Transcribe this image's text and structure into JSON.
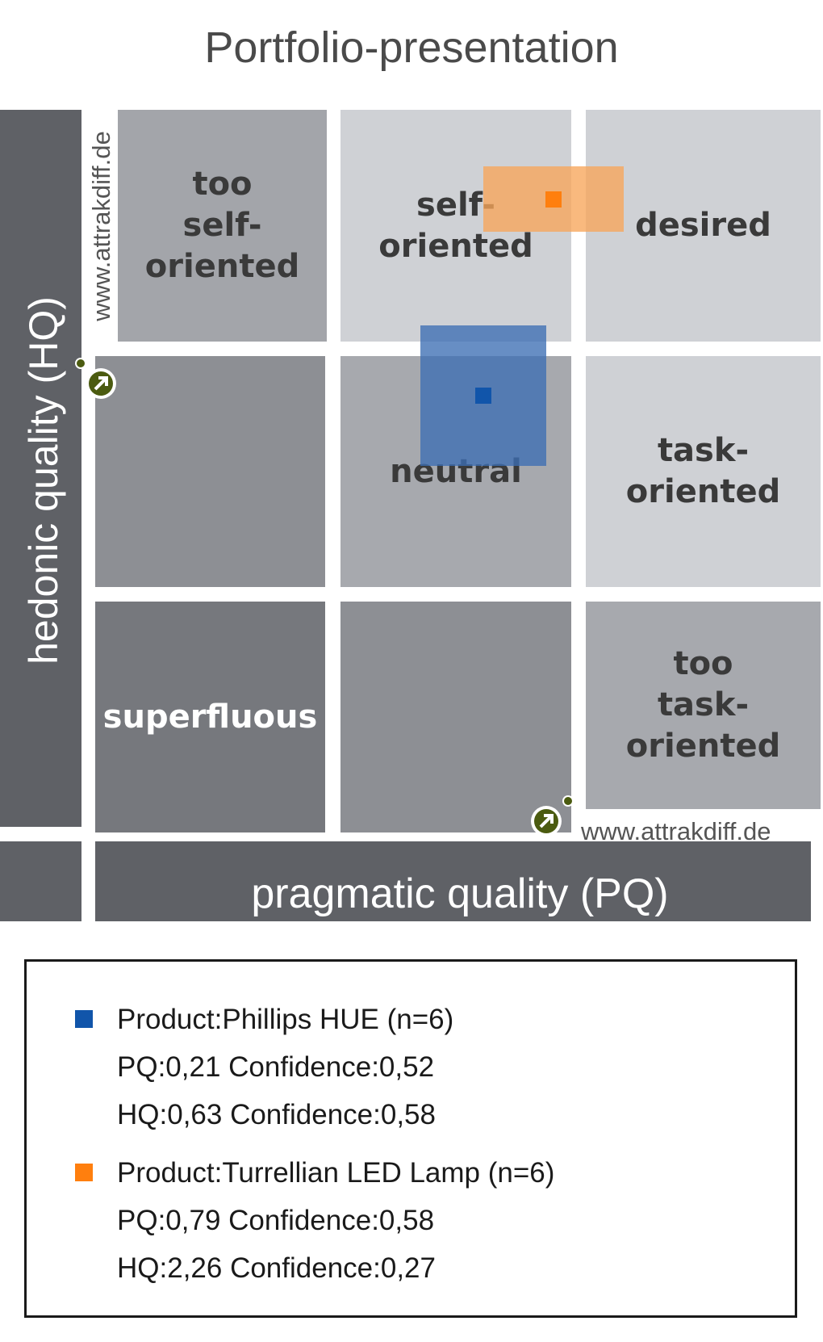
{
  "chart_data": {
    "type": "scatter",
    "title": "Portfolio-presentation",
    "xlabel": "pragmatic quality (PQ)",
    "ylabel": "hedonic quality (HQ)",
    "xlim": [
      -3,
      3
    ],
    "ylim": [
      -3,
      3
    ],
    "watermark": "www.attrakdiff.de",
    "regions": [
      {
        "label": "too self-oriented",
        "lines": [
          "too",
          "self-",
          "oriented"
        ],
        "color": "#a3a5aa",
        "textColor": "#3a3a3a"
      },
      {
        "label": "self-oriented",
        "lines": [
          "self-",
          "oriented"
        ],
        "color": "#cfd1d5",
        "textColor": "#3a3a3a"
      },
      {
        "label": "desired",
        "lines": [
          "desired"
        ],
        "color": "#cfd1d5",
        "textColor": "#3a3a3a"
      },
      {
        "label": "",
        "lines": [],
        "color": "#8d8f94",
        "textColor": "#3a3a3a"
      },
      {
        "label": "neutral",
        "lines": [
          "neutral"
        ],
        "color": "#a7a9ae",
        "textColor": "#3a3a3a"
      },
      {
        "label": "task-oriented",
        "lines": [
          "task-",
          "oriented"
        ],
        "color": "#cfd1d5",
        "textColor": "#3a3a3a"
      },
      {
        "label": "superfluous",
        "lines": [
          "superfluous"
        ],
        "color": "#76787d",
        "textColor": "#ffffff"
      },
      {
        "label": "",
        "lines": [],
        "color": "#8d8f94",
        "textColor": "#3a3a3a"
      },
      {
        "label": "too task-oriented",
        "lines": [
          "too",
          "task-",
          "oriented"
        ],
        "color": "#a7a9ae",
        "textColor": "#3a3a3a"
      }
    ],
    "series": [
      {
        "name": "Product:Phillips HUE (n=6)",
        "pq": 0.21,
        "pq_conf": 0.52,
        "hq": 0.63,
        "hq_conf": 0.58,
        "color": "#1155aa",
        "box_color": "rgba(60,110,180,0.78)",
        "pq_text": "PQ:0,21 Confidence:0,52",
        "hq_text": "HQ:0,63 Confidence:0,58"
      },
      {
        "name": "Product:Turrellian LED Lamp (n=6)",
        "pq": 0.79,
        "pq_conf": 0.58,
        "hq": 2.26,
        "hq_conf": 0.27,
        "color": "#ff7f0e",
        "box_color": "rgba(247,165,90,0.78)",
        "pq_text": "PQ:0,79 Confidence:0,58",
        "hq_text": "HQ:2,26 Confidence:0,27"
      }
    ]
  }
}
